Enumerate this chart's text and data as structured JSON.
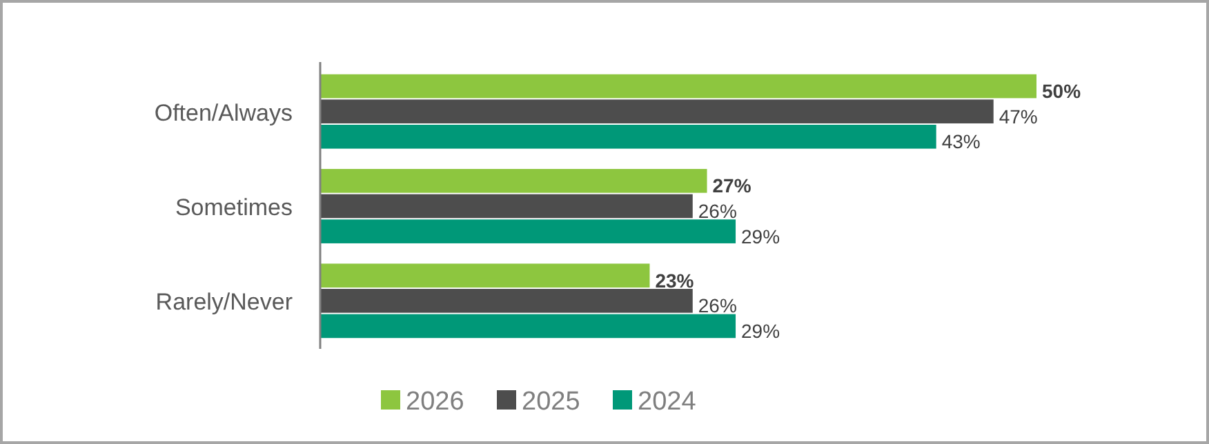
{
  "chart_data": {
    "type": "bar",
    "orientation": "horizontal",
    "categories": [
      "Often/Always",
      "Sometimes",
      "Rarely/Never"
    ],
    "series": [
      {
        "name": "2026",
        "color": "#8dc63f",
        "values": [
          50,
          27,
          23
        ],
        "value_labels": [
          "50%",
          "27%",
          "23%"
        ]
      },
      {
        "name": "2025",
        "color": "#4d4d4d",
        "values": [
          47,
          26,
          26
        ],
        "value_labels": [
          "47%",
          "26%",
          "26%"
        ]
      },
      {
        "name": "2024",
        "color": "#009878",
        "values": [
          43,
          29,
          29
        ],
        "value_labels": [
          "43%",
          "29%",
          "29%"
        ]
      }
    ],
    "legend": "bottom"
  }
}
